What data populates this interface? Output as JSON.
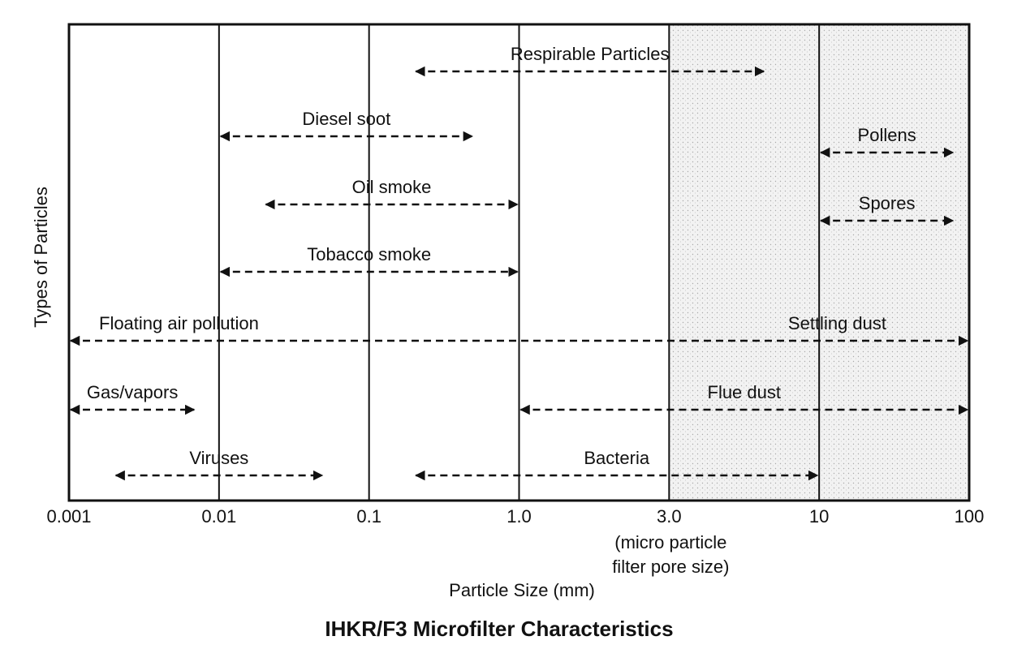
{
  "chart_data": {
    "type": "range",
    "title": "IHKR/F3 Microfilter Characteristics",
    "x_label": "Particle Size (mm)",
    "y_label": "Types of Particles",
    "xlim": [
      0.001,
      100
    ],
    "xticks": [
      0.001,
      0.01,
      0.1,
      {
        "value": 1,
        "label": "1.0"
      },
      {
        "value": 3,
        "label": "3.0"
      },
      10,
      100
    ],
    "xtick_note": [
      "(micro particle",
      "filter pore size)"
    ],
    "shaded_range": [
      3,
      100
    ],
    "color": "#111111",
    "ranges": [
      {
        "label": "Respirable Particles",
        "start": 0.2,
        "end": 6.5
      },
      {
        "label": "Diesel soot",
        "start": 0.01,
        "end": 0.5
      },
      {
        "label": "Pollens",
        "start": 10,
        "end": 80
      },
      {
        "label": "Oil smoke",
        "start": 0.02,
        "end": 1
      },
      {
        "label": "Spores",
        "start": 10,
        "end": 80
      },
      {
        "label": "Tobacco smoke",
        "start": 0.01,
        "end": 1
      },
      {
        "labels": [
          "Floating air pollution",
          "Settling dust"
        ],
        "start": 0.001,
        "end": 100
      },
      {
        "label": "Gas/vapors",
        "start": 0.001,
        "end": 0.007
      },
      {
        "label": "Flue dust",
        "start": 1,
        "end": 100
      },
      {
        "label": "Viruses",
        "start": 0.002,
        "end": 0.05
      },
      {
        "label": "Bacteria",
        "start": 0.2,
        "end": 10
      }
    ]
  }
}
